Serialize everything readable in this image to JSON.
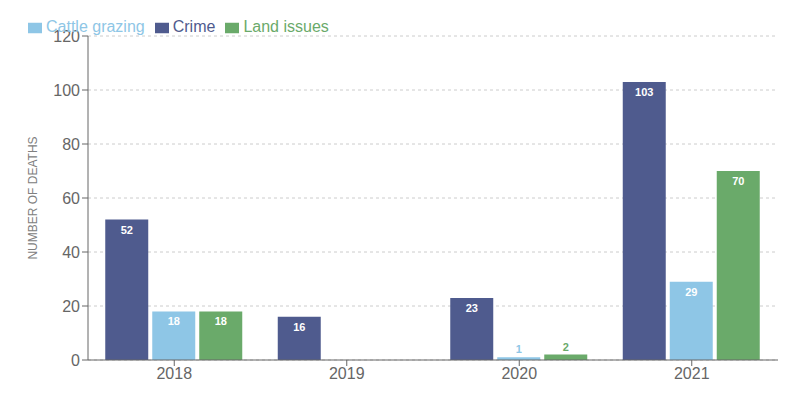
{
  "chart_data": {
    "type": "bar",
    "categories": [
      "2018",
      "2019",
      "2020",
      "2021"
    ],
    "series": [
      {
        "name": "Crime",
        "color": "#4f5b8e",
        "values": [
          52,
          16,
          23,
          103
        ]
      },
      {
        "name": "Cattle grazing",
        "color": "#8ec6e6",
        "values": [
          18,
          0,
          1,
          29
        ]
      },
      {
        "name": "Land issues",
        "color": "#6aaa6a",
        "values": [
          18,
          0,
          2,
          70
        ]
      }
    ],
    "ylabel": "NUMBER OF DEATHS",
    "ylim": [
      0,
      120
    ],
    "yticks": [
      0,
      20,
      40,
      60,
      80,
      100,
      120
    ],
    "grid": true,
    "legend": "upper left",
    "data_labels": true
  }
}
